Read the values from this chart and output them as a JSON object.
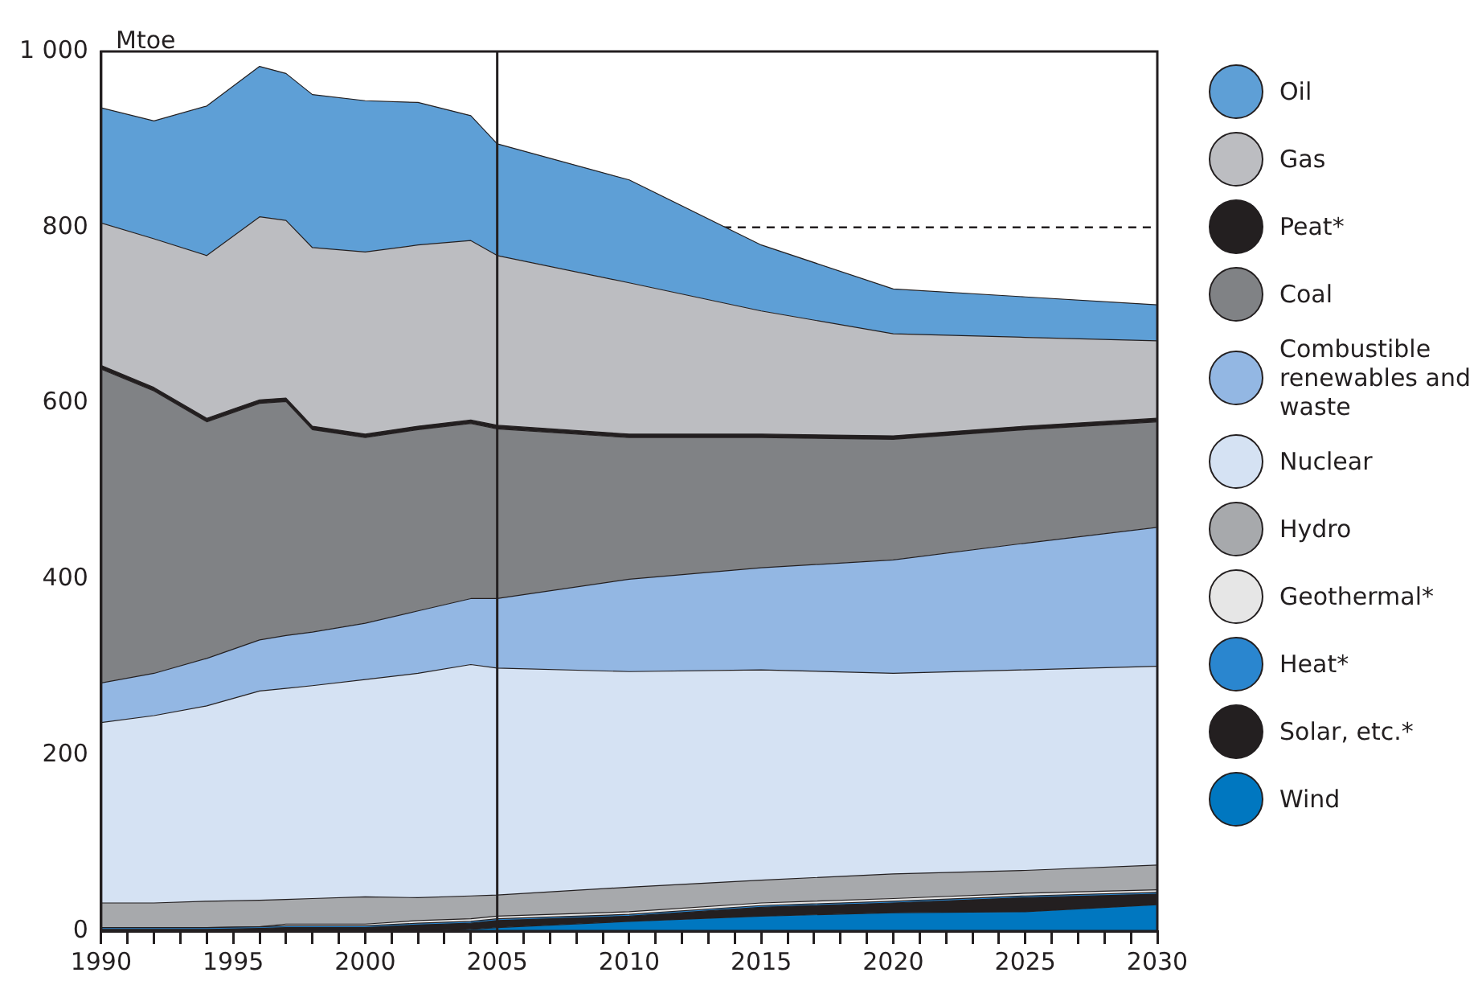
{
  "chart_data": {
    "type": "area",
    "stacked": true,
    "ylabel": "Mtoe",
    "x": [
      1990,
      1992,
      1994,
      1996,
      1997,
      1998,
      2000,
      2002,
      2004,
      2005,
      2010,
      2015,
      2020,
      2025,
      2030
    ],
    "series": [
      {
        "name": "Wind",
        "color": "#0077c0",
        "values": [
          0,
          0,
          0,
          0,
          0,
          0,
          0,
          0,
          2,
          4,
          11,
          17,
          21,
          22,
          30
        ]
      },
      {
        "name": "Solar, etc.*",
        "color": "#231f20",
        "values": [
          2,
          2,
          2,
          3,
          4,
          4,
          4,
          7,
          7,
          8,
          6,
          10,
          11,
          16,
          12
        ]
      },
      {
        "name": "Heat*",
        "color": "#2a86cf",
        "values": [
          2,
          2,
          2,
          2,
          2,
          2,
          2,
          2,
          2,
          2,
          2,
          2,
          2,
          2,
          2
        ]
      },
      {
        "name": "Geothermal*",
        "color": "#e6e6e6",
        "values": [
          0,
          0,
          0,
          0,
          2,
          2,
          2,
          3,
          3,
          3,
          3,
          3,
          3,
          3,
          3
        ]
      },
      {
        "name": "Hydro",
        "color": "#a7a9ac",
        "values": [
          28,
          28,
          30,
          30,
          28,
          29,
          31,
          26,
          26,
          24,
          28,
          26,
          28,
          26,
          28
        ]
      },
      {
        "name": "Nuclear",
        "color": "#d5e2f3",
        "values": [
          205,
          213,
          222,
          238,
          240,
          242,
          247,
          255,
          263,
          258,
          245,
          239,
          228,
          228,
          226
        ]
      },
      {
        "name": "Combustible renewables and waste",
        "color": "#93b7e3",
        "values": [
          45,
          48,
          54,
          58,
          60,
          61,
          64,
          71,
          75,
          79,
          105,
          116,
          129,
          144,
          158
        ]
      },
      {
        "name": "Coal",
        "color": "#808285",
        "values": [
          357,
          321,
          269,
          269,
          266,
          230,
          211,
          206,
          199,
          193,
          161,
          148,
          137,
          129,
          120
        ]
      },
      {
        "name": "Peat*",
        "color": "#231f20",
        "values": [
          4,
          4,
          4,
          4,
          4,
          4,
          4,
          4,
          4,
          4,
          4,
          4,
          4,
          4,
          4
        ]
      },
      {
        "name": "Gas",
        "color": "#bcbdc1",
        "values": [
          162,
          169,
          185,
          208,
          202,
          203,
          207,
          206,
          204,
          193,
          172,
          140,
          116,
          101,
          88
        ]
      },
      {
        "name": "Oil",
        "color": "#5e9fd6",
        "values": [
          131,
          134,
          170,
          171,
          167,
          174,
          172,
          162,
          142,
          127,
          117,
          75,
          51,
          46,
          41
        ]
      }
    ],
    "xlim": [
      1990,
      2030
    ],
    "xticks": [
      1990,
      {
        "value": 1991,
        "label": null
      },
      {
        "value": 1992,
        "label": null
      },
      {
        "value": 1993,
        "label": null
      },
      {
        "value": 1994,
        "label": null
      },
      1995,
      {
        "value": 1996,
        "label": null
      },
      {
        "value": 1997,
        "label": null
      },
      {
        "value": 1998,
        "label": null
      },
      {
        "value": 1999,
        "label": null
      },
      2000,
      {
        "value": 2001,
        "label": null
      },
      {
        "value": 2002,
        "label": null
      },
      {
        "value": 2003,
        "label": null
      },
      {
        "value": 2004,
        "label": null
      },
      2005,
      {
        "value": 2006,
        "label": null
      },
      {
        "value": 2007,
        "label": null
      },
      {
        "value": 2008,
        "label": null
      },
      {
        "value": 2009,
        "label": null
      },
      2010,
      {
        "value": 2011,
        "label": null
      },
      {
        "value": 2012,
        "label": null
      },
      {
        "value": 2013,
        "label": null
      },
      {
        "value": 2014,
        "label": null
      },
      2015,
      {
        "value": 2016,
        "label": null
      },
      {
        "value": 2017,
        "label": null
      },
      {
        "value": 2018,
        "label": null
      },
      {
        "value": 2019,
        "label": null
      },
      2020,
      {
        "value": 2021,
        "label": null
      },
      {
        "value": 2022,
        "label": null
      },
      {
        "value": 2023,
        "label": null
      },
      {
        "value": 2024,
        "label": null
      },
      2025,
      {
        "value": 2026,
        "label": null
      },
      {
        "value": 2027,
        "label": null
      },
      {
        "value": 2028,
        "label": null
      },
      {
        "value": 2029,
        "label": null
      },
      2030
    ],
    "ylim": [
      0,
      1000
    ],
    "yticks": [
      0,
      200,
      400,
      600,
      800,
      {
        "value": 1000,
        "label": "1 000"
      }
    ],
    "ref_lines": [
      {
        "axis": "x",
        "value": 2005,
        "color": "#231f20",
        "line_style": "solid"
      },
      {
        "axis": "y",
        "value": 800,
        "color": "#231f20",
        "line_style": "dashed"
      }
    ],
    "grid": false,
    "legend": "right"
  }
}
